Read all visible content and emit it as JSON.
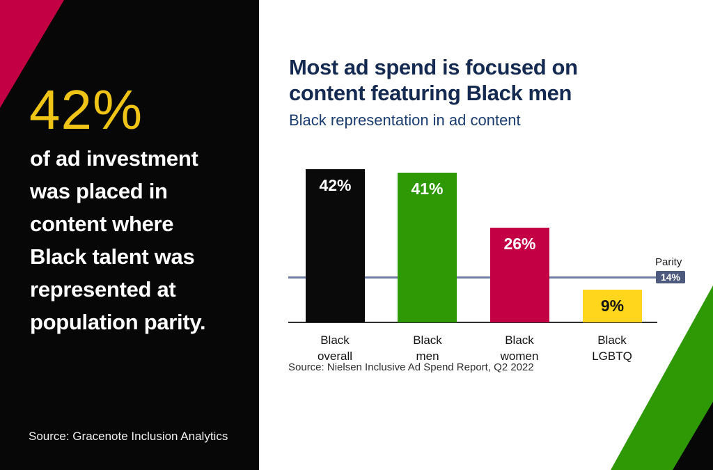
{
  "left_panel": {
    "background_color": "#070707",
    "accent_triangle_color": "#C40045",
    "stat_value": "42%",
    "stat_value_color": "#F0C417",
    "stat_description": "of ad investment was placed in content where Black talent was represented at population parity.",
    "stat_description_lines": [
      "of ad investment",
      "was placed in",
      "content where",
      "Black talent was",
      "represented at",
      "population parity."
    ],
    "source": "Source: Gracenote Inclusion Analytics"
  },
  "main": {
    "title": "Most ad spend is focused on content featuring Black men",
    "title_lines": [
      "Most ad spend is focused on",
      "content featuring Black men"
    ],
    "title_color": "#152A50",
    "subtitle": "Black representation in ad content",
    "subtitle_color": "#1A3C6E",
    "source": "Source: Nielsen Inclusive Ad Spend Report, Q2 2022",
    "decoration": {
      "green_band_color": "#2E9905",
      "black_corner_color": "#070707"
    }
  },
  "chart_data": {
    "type": "bar",
    "title": "Black representation in ad content",
    "categories": [
      "Black overall",
      "Black men",
      "Black women",
      "Black LGBTQ"
    ],
    "values": [
      42,
      41,
      26,
      9
    ],
    "value_labels": [
      "42%",
      "41%",
      "26%",
      "9%"
    ],
    "bar_colors": [
      "#0A0A0A",
      "#2E9905",
      "#C40045",
      "#FFD61C"
    ],
    "value_label_colors": [
      "#FFFFFF",
      "#FFFFFF",
      "#FFFFFF",
      "#141414"
    ],
    "xlabel": "",
    "ylabel": "",
    "ylim": [
      0,
      44
    ],
    "grid": false,
    "legend": "none",
    "reference_line": {
      "label": "Parity",
      "value": 14,
      "badge_text": "14%",
      "line_color": "#717EA3",
      "badge_color": "#4E5A7D"
    }
  }
}
